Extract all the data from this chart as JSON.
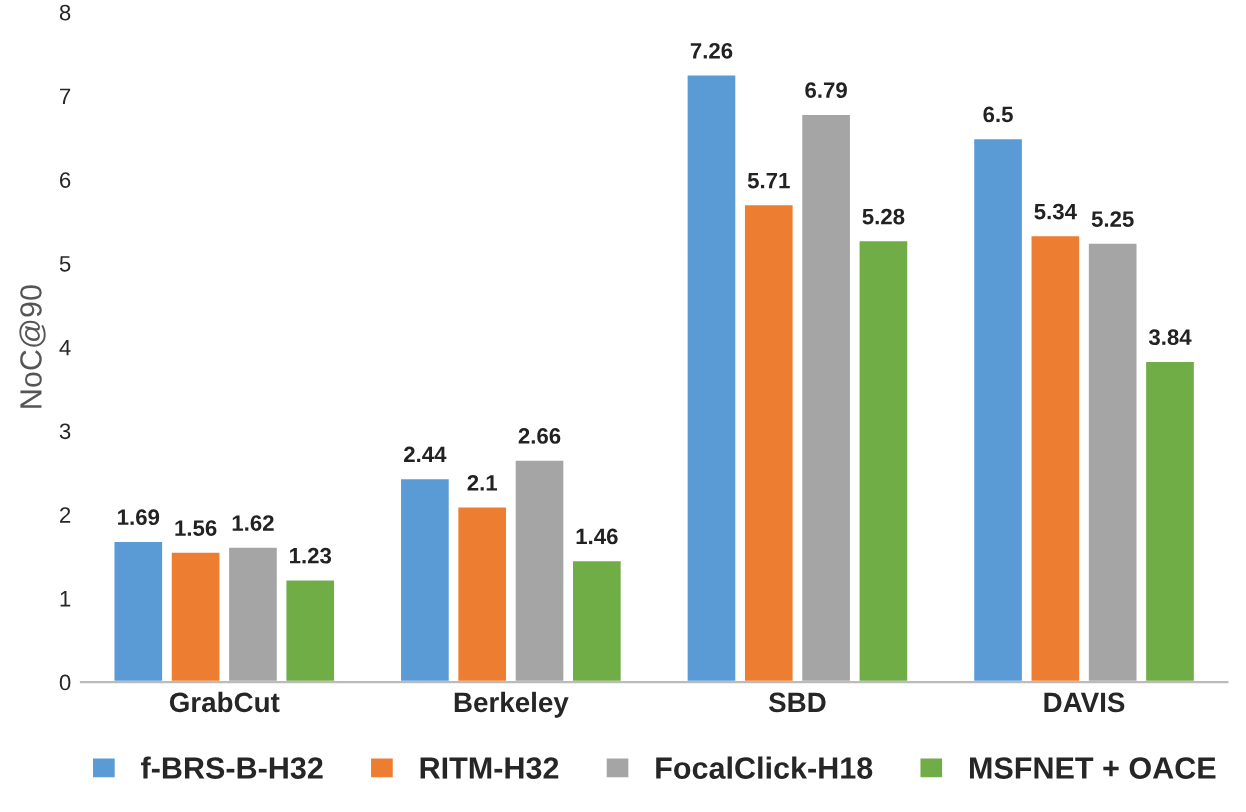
{
  "chart_data": {
    "type": "bar",
    "ylabel": "NoC@90",
    "categories": [
      "GrabCut",
      "Berkeley",
      "SBD",
      "DAVIS"
    ],
    "series": [
      {
        "name": "f-BRS-B-H32",
        "color": "#5b9bd5",
        "values": [
          1.69,
          2.44,
          7.26,
          6.5
        ]
      },
      {
        "name": "RITM-H32",
        "color": "#ed7d31",
        "values": [
          1.56,
          2.1,
          5.71,
          5.34
        ]
      },
      {
        "name": "FocalClick-H18",
        "color": "#a5a5a5",
        "values": [
          1.62,
          2.66,
          6.79,
          5.25
        ]
      },
      {
        "name": "MSFNET + OACE",
        "color": "#70ad47",
        "values": [
          1.23,
          1.46,
          5.28,
          3.84
        ]
      }
    ],
    "ylim": [
      0,
      8
    ],
    "yticks": [
      0,
      1,
      2,
      3,
      4,
      5,
      6,
      7,
      8
    ],
    "data_labels": true,
    "legend": "bottom",
    "grid": false
  }
}
